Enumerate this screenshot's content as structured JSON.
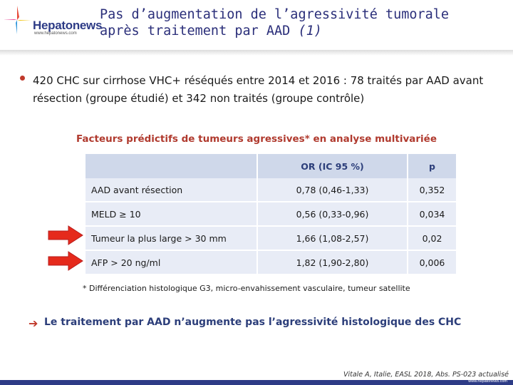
{
  "logo": {
    "name": "Hepatonews",
    "url": "www.hepatonews.com"
  },
  "title": {
    "line1": "Pas d’augmentation de l’agressivité tumorale",
    "line2": "après traitement par AAD ",
    "ref": "(1)"
  },
  "bullet": "420 CHC sur cirrhose VHC+ réséqués entre 2014 et 2016 : 78 traités par AAD avant résection (groupe étudié) et 342 non traités (groupe contrôle)",
  "table": {
    "title": "Facteurs prédictifs de tumeurs agressives* en analyse multivariée",
    "headers": [
      "",
      "OR (IC 95 %)",
      "p"
    ],
    "rows": [
      {
        "factor": "AAD avant résection",
        "or": "0,78 (0,46-1,33)",
        "p": "0,352",
        "highlight": false
      },
      {
        "factor": "MELD ≥ 10",
        "or": "0,56 (0,33-0,96)",
        "p": "0,034",
        "highlight": false
      },
      {
        "factor": "Tumeur la plus large > 30 mm",
        "or": "1,66 (1,08-2,57)",
        "p": "0,02",
        "highlight": true
      },
      {
        "factor": "AFP > 20 ng/ml",
        "or": "1,82 (1,90-2,80)",
        "p": "0,006",
        "highlight": true
      }
    ]
  },
  "footnote": "* Différenciation histologique G3, micro-envahissement vasculaire, tumeur satellite",
  "conclusion": "Le traitement par AAD n’augmente pas l’agressivité histologique des CHC",
  "citation": "Vitale A, Italie, EASL 2018, Abs. PS-023 actualisé",
  "footer_url": "www.hepatonews.com",
  "colors": {
    "accent_red": "#c0392b",
    "brand_blue": "#2d3b86",
    "table_header": "#cfd8ea",
    "table_row": "#e8ecf6"
  },
  "icons": {
    "highlight_arrow": "arrow-right-icon",
    "conclusion_arrow": "arrow-right-icon"
  }
}
